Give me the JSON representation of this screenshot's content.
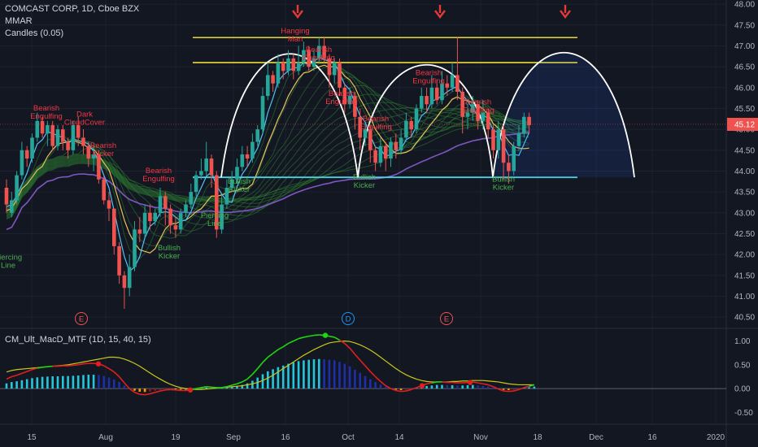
{
  "header": {
    "symbol_line": "COMCAST CORP, 1D, Cboe BZX",
    "indicator_1": "MMAR",
    "indicator_2": "Candles (0.05)"
  },
  "macd_panel": {
    "title": "CM_Ult_MacD_MTF (1D, 15, 40, 15)"
  },
  "colors": {
    "background": "#131722",
    "bull": "#26a69a",
    "bear": "#ef5350",
    "yellow_line": "#ffeb3b",
    "cyan_line": "#4dd0e1",
    "ribbon_green": "#2e7d32",
    "slow_ma": "#7e57c2",
    "fast_ma": "#4fc3f7",
    "mid_ma": "#e6c35c",
    "arc": "#ffffff",
    "arrow": "#e53935",
    "price_tag": "#ef5350",
    "macd_fast_up": "#1fd60f",
    "macd_fast_down": "#e02020",
    "macd_signal": "#c8c818",
    "hist_up_strong": "#26c6da",
    "hist_up_weak": "#1e2fa8",
    "hist_down_strong": "#ff9800",
    "hist_down_weak": "#8b1a1a"
  },
  "chart_data": [
    {
      "type": "candlestick",
      "title": "COMCAST CORP, 1D, Cboe BZX",
      "ylim": [
        40.25,
        48.1
      ],
      "y_ticks": [
        "48.00",
        "47.50",
        "47.00",
        "46.50",
        "46.00",
        "45.50",
        "45.00",
        "44.50",
        "44.00",
        "43.50",
        "43.00",
        "42.50",
        "42.00",
        "41.50",
        "41.00",
        "40.50"
      ],
      "x_tick_labels": [
        "15",
        "Aug",
        "19",
        "Sep",
        "16",
        "Oct",
        "14",
        "Nov",
        "18",
        "Dec",
        "16",
        "2020"
      ],
      "last_price_label": "45.12",
      "last_price": 45.12,
      "candles": [
        [
          43.6,
          43.2,
          43.8,
          43.0
        ],
        [
          43.0,
          43.3,
          43.5,
          42.9
        ],
        [
          43.3,
          43.9,
          44.0,
          43.2
        ],
        [
          43.9,
          44.5,
          44.7,
          43.8
        ],
        [
          44.5,
          44.3,
          44.6,
          44.1
        ],
        [
          44.3,
          44.8,
          44.9,
          44.2
        ],
        [
          44.8,
          45.2,
          45.4,
          44.7
        ],
        [
          45.2,
          44.9,
          45.3,
          44.8
        ],
        [
          44.9,
          45.1,
          45.2,
          44.6
        ],
        [
          45.1,
          44.6,
          45.2,
          44.5
        ],
        [
          44.6,
          45.0,
          45.1,
          44.5
        ],
        [
          45.0,
          44.7,
          45.1,
          44.5
        ],
        [
          44.7,
          44.5,
          44.8,
          44.3
        ],
        [
          44.5,
          45.1,
          45.2,
          44.4
        ],
        [
          45.1,
          44.8,
          45.3,
          44.6
        ],
        [
          44.8,
          44.6,
          45.0,
          44.4
        ],
        [
          44.6,
          44.3,
          44.7,
          44.1
        ],
        [
          44.3,
          44.4,
          44.6,
          44.0
        ],
        [
          44.4,
          43.8,
          44.5,
          43.7
        ],
        [
          43.8,
          43.3,
          43.9,
          43.2
        ],
        [
          43.3,
          43.1,
          43.5,
          42.8
        ],
        [
          43.1,
          42.2,
          43.1,
          42.0
        ],
        [
          42.2,
          41.5,
          42.3,
          41.3
        ],
        [
          41.5,
          41.2,
          41.6,
          40.7
        ],
        [
          41.2,
          41.7,
          42.0,
          41.0
        ],
        [
          41.7,
          42.6,
          42.8,
          41.6
        ],
        [
          42.6,
          42.5,
          42.9,
          42.3
        ],
        [
          42.5,
          43.0,
          43.2,
          42.4
        ],
        [
          43.0,
          42.8,
          43.2,
          42.6
        ],
        [
          42.8,
          43.0,
          43.1,
          42.7
        ],
        [
          43.0,
          43.4,
          43.6,
          42.9
        ],
        [
          43.4,
          43.1,
          43.5,
          42.7
        ],
        [
          43.1,
          42.7,
          43.2,
          42.5
        ],
        [
          42.7,
          42.6,
          42.9,
          42.4
        ],
        [
          42.6,
          43.0,
          43.1,
          42.5
        ],
        [
          43.0,
          43.2,
          43.3,
          42.9
        ],
        [
          43.2,
          43.5,
          43.7,
          43.1
        ],
        [
          43.5,
          43.9,
          44.0,
          43.4
        ],
        [
          43.9,
          44.0,
          44.3,
          43.8
        ],
        [
          44.0,
          44.3,
          44.7,
          43.9
        ],
        [
          44.3,
          43.9,
          44.4,
          43.6
        ],
        [
          43.9,
          42.6,
          44.0,
          42.4
        ],
        [
          42.6,
          43.2,
          43.4,
          42.5
        ],
        [
          43.2,
          43.6,
          43.8,
          43.1
        ],
        [
          43.6,
          43.8,
          44.0,
          43.5
        ],
        [
          43.8,
          44.1,
          44.3,
          43.7
        ],
        [
          44.1,
          44.4,
          44.6,
          44.0
        ],
        [
          44.4,
          44.3,
          44.6,
          44.1
        ],
        [
          44.3,
          44.7,
          44.9,
          44.2
        ],
        [
          44.7,
          45.0,
          45.1,
          44.6
        ],
        [
          45.0,
          45.8,
          46.0,
          44.9
        ],
        [
          45.8,
          46.3,
          46.6,
          45.7
        ],
        [
          46.3,
          46.1,
          46.4,
          45.9
        ],
        [
          46.1,
          46.6,
          46.8,
          46.0
        ],
        [
          46.6,
          46.4,
          46.7,
          46.2
        ],
        [
          46.4,
          46.7,
          46.9,
          46.3
        ],
        [
          46.7,
          46.4,
          46.8,
          46.2
        ],
        [
          46.4,
          46.6,
          47.0,
          46.3
        ],
        [
          46.6,
          46.9,
          47.1,
          46.5
        ],
        [
          46.9,
          46.5,
          47.0,
          46.4
        ],
        [
          46.5,
          46.7,
          46.9,
          46.4
        ],
        [
          46.7,
          47.0,
          47.2,
          46.6
        ],
        [
          47.0,
          46.7,
          47.2,
          46.6
        ],
        [
          46.7,
          46.3,
          46.8,
          46.0
        ],
        [
          46.3,
          46.6,
          46.7,
          46.1
        ],
        [
          46.6,
          46.0,
          46.7,
          45.8
        ],
        [
          46.0,
          45.6,
          46.1,
          45.4
        ],
        [
          45.6,
          45.8,
          46.0,
          45.5
        ],
        [
          45.8,
          45.3,
          45.9,
          45.0
        ],
        [
          45.3,
          44.8,
          45.5,
          44.5
        ],
        [
          44.8,
          45.0,
          45.2,
          44.6
        ],
        [
          45.0,
          44.5,
          45.1,
          44.2
        ],
        [
          44.5,
          44.2,
          44.6,
          44.0
        ],
        [
          44.2,
          44.6,
          44.8,
          44.1
        ],
        [
          44.6,
          44.3,
          44.7,
          44.0
        ],
        [
          44.3,
          44.7,
          44.8,
          44.1
        ],
        [
          44.7,
          44.5,
          44.9,
          44.3
        ],
        [
          44.5,
          44.8,
          45.0,
          44.4
        ],
        [
          44.8,
          45.2,
          45.4,
          44.7
        ],
        [
          45.2,
          45.0,
          45.3,
          44.8
        ],
        [
          45.0,
          45.5,
          45.6,
          44.9
        ],
        [
          45.5,
          45.8,
          46.0,
          45.4
        ],
        [
          45.8,
          45.6,
          46.0,
          45.4
        ],
        [
          45.6,
          46.0,
          46.3,
          45.5
        ],
        [
          46.0,
          45.7,
          46.2,
          45.6
        ],
        [
          45.7,
          46.1,
          46.4,
          45.6
        ],
        [
          46.1,
          46.0,
          46.3,
          45.8
        ],
        [
          46.0,
          46.3,
          46.6,
          45.9
        ],
        [
          46.3,
          45.9,
          47.2,
          45.7
        ],
        [
          45.9,
          45.3,
          46.0,
          44.9
        ],
        [
          45.3,
          45.4,
          45.6,
          45.0
        ],
        [
          45.4,
          45.6,
          45.8,
          45.2
        ],
        [
          45.6,
          45.2,
          45.7,
          45.0
        ],
        [
          45.2,
          45.4,
          45.7,
          45.0
        ],
        [
          45.4,
          45.0,
          45.5,
          44.8
        ],
        [
          45.0,
          44.5,
          45.1,
          44.3
        ],
        [
          44.5,
          45.0,
          45.2,
          44.3
        ],
        [
          45.0,
          44.2,
          45.1,
          43.8
        ],
        [
          44.2,
          44.0,
          44.4,
          43.7
        ],
        [
          44.0,
          44.6,
          44.7,
          43.9
        ],
        [
          44.6,
          44.9,
          45.1,
          44.5
        ],
        [
          44.9,
          45.3,
          45.4,
          44.8
        ],
        [
          45.3,
          45.1,
          45.4,
          44.9
        ]
      ],
      "horizontal_lines": [
        47.2,
        46.6,
        43.85
      ],
      "annotations": [
        {
          "text_lines": [
            "Bearish",
            "Engulfing"
          ],
          "kind": "bear",
          "x": 57,
          "y": 45.45
        },
        {
          "text_lines": [
            "Dark",
            "CloudCover"
          ],
          "kind": "bear",
          "x": 104,
          "y": 45.3
        },
        {
          "text_lines": [
            "Bearish",
            "Kicker"
          ],
          "kind": "bear",
          "x": 127,
          "y": 44.55
        },
        {
          "text_lines": [
            "Bearish",
            "Engulfing"
          ],
          "kind": "bear",
          "x": 195,
          "y": 43.95
        },
        {
          "text_lines": [
            "Piercing",
            "Line"
          ],
          "kind": "bull",
          "x": 10,
          "y": 41.88
        },
        {
          "text_lines": [
            "Piercing",
            "Line"
          ],
          "kind": "bull",
          "x": 264,
          "y": 42.88
        },
        {
          "text_lines": [
            "Bullish",
            "Kicker"
          ],
          "kind": "bull",
          "x": 208,
          "y": 42.1
        },
        {
          "text_lines": [
            "Bullish",
            "Kicker"
          ],
          "kind": "bull",
          "x": 294,
          "y": 43.7
        },
        {
          "text_lines": [
            "Hanging",
            "Man"
          ],
          "kind": "bear",
          "x": 363,
          "y": 47.3
        },
        {
          "text_lines": [
            "Bearish",
            "Engulfing"
          ],
          "kind": "bear",
          "x": 392,
          "y": 46.85
        },
        {
          "text_lines": [
            "Bearish",
            "Engulfing"
          ],
          "kind": "bear",
          "x": 420,
          "y": 45.8
        },
        {
          "text_lines": [
            "Bearish",
            "Engulfing"
          ],
          "kind": "bear",
          "x": 462,
          "y": 45.2
        },
        {
          "text_lines": [
            "Bullish",
            "Kicker"
          ],
          "kind": "bull",
          "x": 448,
          "y": 43.8
        },
        {
          "text_lines": [
            "Bearish",
            "Engulfing"
          ],
          "kind": "bear",
          "x": 527,
          "y": 46.3
        },
        {
          "text_lines": [
            "Bearish",
            "Engulfing"
          ],
          "kind": "bear",
          "x": 588,
          "y": 45.6
        },
        {
          "text_lines": [
            "Bullish",
            "Kicker"
          ],
          "kind": "bull",
          "x": 619,
          "y": 43.75
        }
      ],
      "event_markers": [
        {
          "label": "E",
          "x": 100
        },
        {
          "label": "D",
          "x": 428
        },
        {
          "label": "E",
          "x": 549
        }
      ],
      "arrow_markers": [
        {
          "x": 366
        },
        {
          "x": 541
        },
        {
          "x": 695
        }
      ]
    },
    {
      "type": "macd",
      "title": "CM_Ult_MacD_MTF (1D, 15, 40, 15)",
      "ylim": [
        -0.75,
        1.25
      ],
      "y_ticks": [
        "1.00",
        "0.50",
        "0.00",
        "-0.50"
      ],
      "macd": [
        0.2,
        0.25,
        0.28,
        0.32,
        0.36,
        0.4,
        0.43,
        0.45,
        0.46,
        0.47,
        0.47,
        0.48,
        0.48,
        0.49,
        0.5,
        0.52,
        0.53,
        0.53,
        0.52,
        0.48,
        0.42,
        0.35,
        0.25,
        0.12,
        0.0,
        -0.08,
        -0.12,
        -0.13,
        -0.11,
        -0.08,
        -0.05,
        -0.03,
        -0.02,
        -0.03,
        -0.04,
        -0.04,
        -0.03,
        0.0,
        0.02,
        0.04,
        0.03,
        0.02,
        0.02,
        0.04,
        0.07,
        0.1,
        0.14,
        0.2,
        0.3,
        0.42,
        0.55,
        0.66,
        0.74,
        0.82,
        0.88,
        0.95,
        1.0,
        1.05,
        1.08,
        1.1,
        1.12,
        1.13,
        1.12,
        1.1,
        1.08,
        1.02,
        0.95,
        0.85,
        0.72,
        0.6,
        0.48,
        0.36,
        0.25,
        0.15,
        0.06,
        0.0,
        -0.04,
        -0.06,
        -0.05,
        -0.02,
        0.02,
        0.06,
        0.1,
        0.12,
        0.14,
        0.14,
        0.13,
        0.13,
        0.12,
        0.12,
        0.13,
        0.14,
        0.12,
        0.1,
        0.08,
        0.04,
        -0.01,
        -0.05,
        -0.06,
        -0.05,
        -0.02,
        0.02,
        0.05,
        0.08
      ],
      "signal": [
        0.35,
        0.38,
        0.4,
        0.41,
        0.42,
        0.43,
        0.44,
        0.45,
        0.46,
        0.47,
        0.48,
        0.49,
        0.5,
        0.52,
        0.54,
        0.56,
        0.58,
        0.6,
        0.62,
        0.64,
        0.66,
        0.66,
        0.65,
        0.62,
        0.58,
        0.53,
        0.47,
        0.4,
        0.33,
        0.26,
        0.2,
        0.14,
        0.09,
        0.05,
        0.02,
        0.0,
        -0.01,
        -0.02,
        -0.02,
        -0.01,
        0.0,
        0.01,
        0.02,
        0.03,
        0.04,
        0.05,
        0.06,
        0.08,
        0.1,
        0.13,
        0.17,
        0.22,
        0.28,
        0.35,
        0.42,
        0.49,
        0.56,
        0.63,
        0.7,
        0.76,
        0.82,
        0.87,
        0.92,
        0.96,
        0.98,
        0.99,
        1.0,
        0.99,
        0.96,
        0.92,
        0.87,
        0.81,
        0.74,
        0.66,
        0.58,
        0.5,
        0.42,
        0.35,
        0.29,
        0.24,
        0.2,
        0.17,
        0.15,
        0.14,
        0.14,
        0.14,
        0.14,
        0.15,
        0.15,
        0.16,
        0.16,
        0.17,
        0.17,
        0.17,
        0.16,
        0.15,
        0.14,
        0.12,
        0.1,
        0.09,
        0.08,
        0.08,
        0.08,
        0.08
      ],
      "crosses": [
        {
          "x": 121
        },
        {
          "x": 234
        },
        {
          "x": 400
        },
        {
          "x": 519
        },
        {
          "x": 578
        }
      ]
    }
  ]
}
